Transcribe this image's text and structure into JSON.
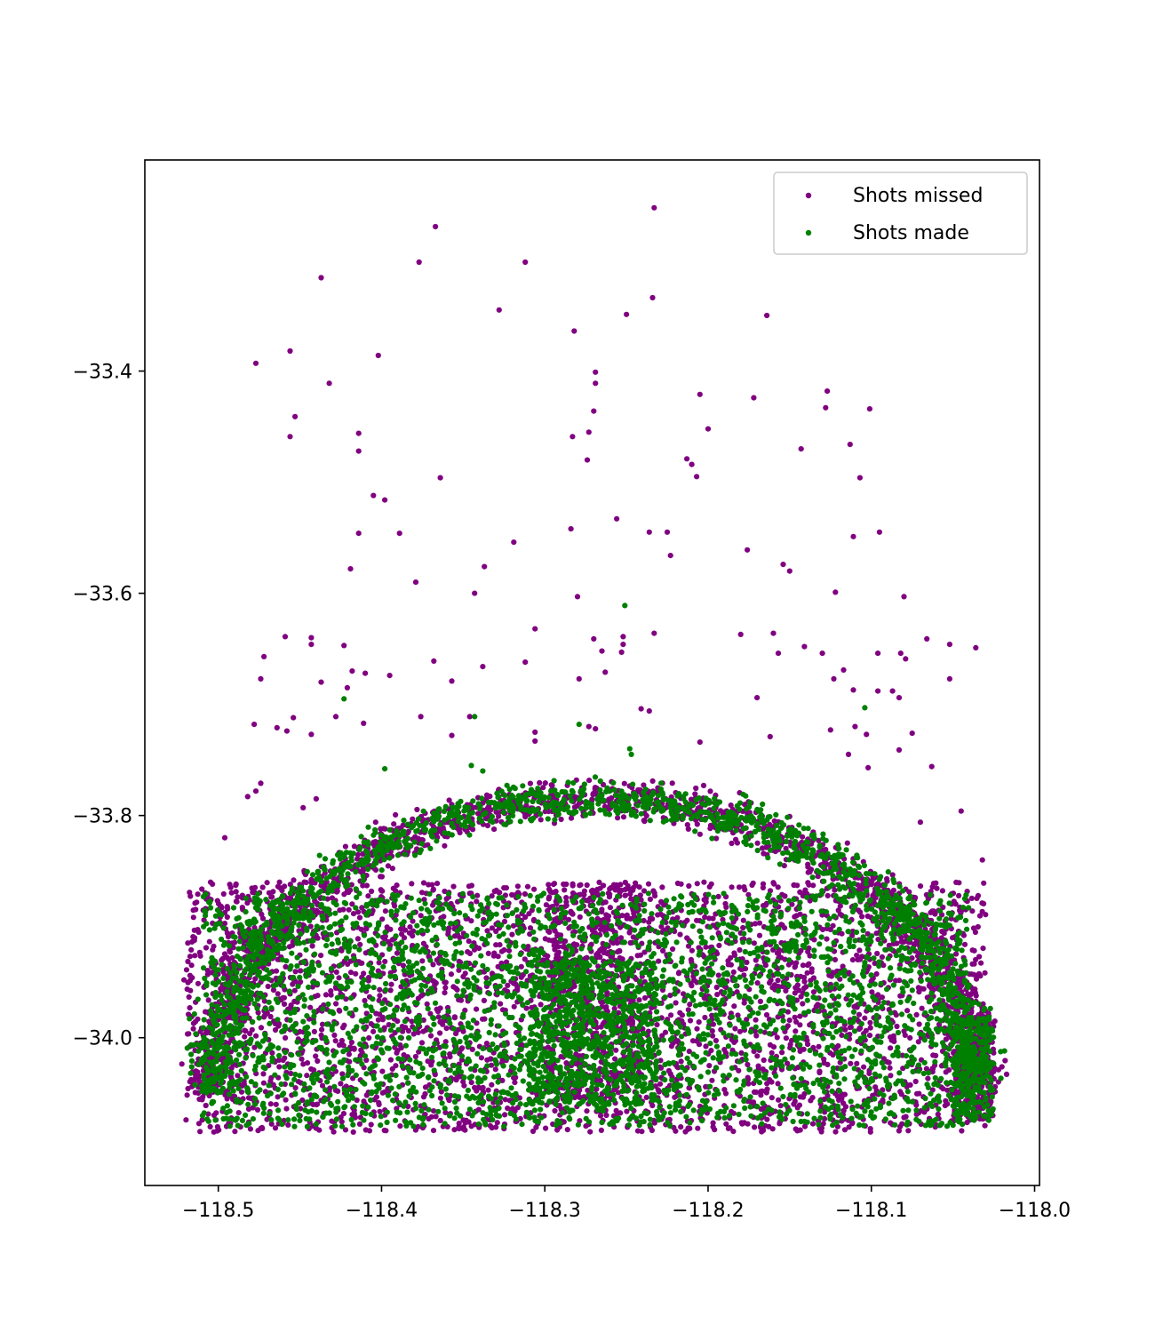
{
  "chart_data": {
    "type": "scatter",
    "title": "",
    "xlabel": "",
    "ylabel": "",
    "xlim": [
      -118.545,
      -117.997
    ],
    "ylim": [
      -34.133,
      -33.21
    ],
    "x_ticks": [
      -118.5,
      -118.4,
      -118.3,
      -118.2,
      -118.1,
      -118.0
    ],
    "x_tick_labels": [
      "−118.5",
      "−118.4",
      "−118.3",
      "−118.2",
      "−118.1",
      "−118.0"
    ],
    "y_ticks": [
      -33.4,
      -33.6,
      -33.8,
      -34.0
    ],
    "y_tick_labels": [
      "−33.4",
      "−33.6",
      "−33.8",
      "−34.0"
    ],
    "grid": false,
    "legend_position": "top-right",
    "series": [
      {
        "name": "Shots missed",
        "color": "#800080",
        "outliers": [
          [
            -118.233,
            -33.253
          ],
          [
            -118.367,
            -33.27
          ],
          [
            -118.377,
            -33.302
          ],
          [
            -118.312,
            -33.302
          ],
          [
            -118.437,
            -33.316
          ],
          [
            -118.234,
            -33.334
          ],
          [
            -118.328,
            -33.345
          ],
          [
            -118.25,
            -33.349
          ],
          [
            -118.164,
            -33.35
          ],
          [
            -118.282,
            -33.364
          ],
          [
            -118.456,
            -33.382
          ],
          [
            -118.477,
            -33.393
          ],
          [
            -118.402,
            -33.386
          ],
          [
            -118.269,
            -33.401
          ],
          [
            -118.269,
            -33.411
          ],
          [
            -118.432,
            -33.411
          ],
          [
            -118.127,
            -33.418
          ],
          [
            -118.205,
            -33.421
          ],
          [
            -118.172,
            -33.424
          ],
          [
            -118.128,
            -33.433
          ],
          [
            -118.101,
            -33.434
          ],
          [
            -118.27,
            -33.436
          ],
          [
            -118.453,
            -33.441
          ],
          [
            -118.2,
            -33.452
          ],
          [
            -118.414,
            -33.456
          ],
          [
            -118.273,
            -33.455
          ],
          [
            -118.283,
            -33.459
          ],
          [
            -118.456,
            -33.459
          ],
          [
            -118.113,
            -33.466
          ],
          [
            -118.143,
            -33.47
          ],
          [
            -118.414,
            -33.472
          ],
          [
            -118.274,
            -33.48
          ],
          [
            -118.213,
            -33.479
          ],
          [
            -118.21,
            -33.484
          ],
          [
            -118.364,
            -33.496
          ],
          [
            -118.207,
            -33.495
          ],
          [
            -118.107,
            -33.496
          ],
          [
            -118.405,
            -33.512
          ],
          [
            -118.398,
            -33.516
          ],
          [
            -118.256,
            -33.533
          ],
          [
            -118.284,
            -33.542
          ],
          [
            -118.414,
            -33.546
          ],
          [
            -118.389,
            -33.546
          ],
          [
            -118.236,
            -33.545
          ],
          [
            -118.225,
            -33.545
          ],
          [
            -118.095,
            -33.545
          ],
          [
            -118.111,
            -33.549
          ],
          [
            -118.319,
            -33.554
          ],
          [
            -118.176,
            -33.561
          ],
          [
            -118.223,
            -33.566
          ],
          [
            -118.154,
            -33.574
          ],
          [
            -118.15,
            -33.58
          ],
          [
            -118.419,
            -33.578
          ],
          [
            -118.337,
            -33.576
          ],
          [
            -118.379,
            -33.59
          ],
          [
            -118.343,
            -33.6
          ],
          [
            -118.122,
            -33.599
          ],
          [
            -118.28,
            -33.603
          ],
          [
            -118.08,
            -33.603
          ],
          [
            -118.306,
            -33.632
          ],
          [
            -118.459,
            -33.639
          ],
          [
            -118.233,
            -33.636
          ],
          [
            -118.27,
            -33.641
          ],
          [
            -118.252,
            -33.639
          ],
          [
            -118.18,
            -33.637
          ],
          [
            -118.16,
            -33.636
          ],
          [
            -118.443,
            -33.64
          ],
          [
            -118.066,
            -33.641
          ],
          [
            -118.052,
            -33.646
          ],
          [
            -118.036,
            -33.649
          ],
          [
            -118.252,
            -33.646
          ],
          [
            -118.443,
            -33.646
          ],
          [
            -118.423,
            -33.647
          ],
          [
            -118.141,
            -33.648
          ],
          [
            -118.265,
            -33.652
          ],
          [
            -118.253,
            -33.653
          ],
          [
            -118.157,
            -33.654
          ],
          [
            -118.13,
            -33.654
          ],
          [
            -118.096,
            -33.654
          ],
          [
            -118.082,
            -33.654
          ],
          [
            -118.079,
            -33.659
          ],
          [
            -118.472,
            -33.657
          ],
          [
            -118.368,
            -33.661
          ],
          [
            -118.312,
            -33.662
          ],
          [
            -118.338,
            -33.666
          ],
          [
            -118.117,
            -33.669
          ],
          [
            -118.418,
            -33.67
          ],
          [
            -118.263,
            -33.671
          ],
          [
            -118.41,
            -33.672
          ],
          [
            -118.395,
            -33.674
          ],
          [
            -118.474,
            -33.677
          ],
          [
            -118.052,
            -33.677
          ],
          [
            -118.279,
            -33.677
          ],
          [
            -118.437,
            -33.68
          ],
          [
            -118.357,
            -33.679
          ],
          [
            -118.123,
            -33.677
          ],
          [
            -118.421,
            -33.685
          ],
          [
            -118.111,
            -33.687
          ],
          [
            -118.096,
            -33.688
          ],
          [
            -118.087,
            -33.688
          ],
          [
            -118.17,
            -33.694
          ],
          [
            -118.083,
            -33.694
          ],
          [
            -118.241,
            -33.704
          ],
          [
            -118.236,
            -33.706
          ],
          [
            -118.428,
            -33.711
          ],
          [
            -118.454,
            -33.712
          ],
          [
            -118.376,
            -33.711
          ],
          [
            -118.346,
            -33.711
          ],
          [
            -118.411,
            -33.717
          ],
          [
            -118.478,
            -33.718
          ],
          [
            -118.273,
            -33.72
          ],
          [
            -118.11,
            -33.72
          ],
          [
            -118.306,
            -33.725
          ],
          [
            -118.464,
            -33.721
          ],
          [
            -118.458,
            -33.724
          ],
          [
            -118.443,
            -33.727
          ],
          [
            -118.357,
            -33.728
          ],
          [
            -118.269,
            -33.722
          ],
          [
            -118.125,
            -33.723
          ],
          [
            -118.075,
            -33.726
          ],
          [
            -118.103,
            -33.727
          ],
          [
            -118.162,
            -33.729
          ],
          [
            -118.205,
            -33.734
          ],
          [
            -118.306,
            -33.733
          ],
          [
            -118.083,
            -33.741
          ],
          [
            -118.114,
            -33.745
          ],
          [
            -118.102,
            -33.757
          ],
          [
            -118.063,
            -33.756
          ],
          [
            -118.045,
            -33.796
          ],
          [
            -118.07,
            -33.806
          ],
          [
            -118.44,
            -33.785
          ],
          [
            -118.448,
            -33.793
          ],
          [
            -118.496,
            -33.82
          ],
          [
            -118.032,
            -33.84
          ],
          [
            -118.493,
            -33.862
          ],
          [
            -118.499,
            -33.896
          ],
          [
            -118.512,
            -33.905
          ],
          [
            -118.521,
            -33.948
          ],
          [
            -118.516,
            -33.946
          ],
          [
            -118.474,
            -33.771
          ],
          [
            -118.477,
            -33.778
          ],
          [
            -118.482,
            -33.783
          ]
        ],
        "clusters": [
          {
            "shape": "arc",
            "cx": -118.27,
            "cy": -34.05,
            "rx": 0.235,
            "ry": 0.265,
            "count": 1700,
            "spread": 0.03
          },
          {
            "shape": "box",
            "x": [
              -118.52,
              -118.03
            ],
            "y": [
              -34.085,
              -33.86
            ],
            "count": 3300
          },
          {
            "shape": "box",
            "x": [
              -118.3,
              -118.24
            ],
            "y": [
              -34.06,
              -33.86
            ],
            "count": 450
          },
          {
            "shape": "box",
            "x": [
              -118.05,
              -118.025
            ],
            "y": [
              -34.075,
              -33.98
            ],
            "count": 220
          }
        ]
      },
      {
        "name": "Shots made",
        "color": "#008000",
        "outliers": [
          [
            -118.251,
            -33.611
          ],
          [
            -118.279,
            -33.718
          ],
          [
            -118.343,
            -33.711
          ],
          [
            -118.398,
            -33.758
          ],
          [
            -118.104,
            -33.703
          ],
          [
            -118.423,
            -33.695
          ],
          [
            -118.248,
            -33.74
          ],
          [
            -118.247,
            -33.745
          ],
          [
            -118.345,
            -33.755
          ],
          [
            -118.338,
            -33.76
          ]
        ],
        "clusters": [
          {
            "shape": "arc",
            "cx": -118.27,
            "cy": -34.05,
            "rx": 0.235,
            "ry": 0.265,
            "count": 1500,
            "spread": 0.03
          },
          {
            "shape": "box",
            "x": [
              -118.51,
              -118.04
            ],
            "y": [
              -34.08,
              -33.87
            ],
            "count": 2900
          },
          {
            "shape": "box",
            "x": [
              -118.31,
              -118.23
            ],
            "y": [
              -34.06,
              -33.93
            ],
            "count": 650
          },
          {
            "shape": "box",
            "x": [
              -118.05,
              -118.025
            ],
            "y": [
              -34.075,
              -33.98
            ],
            "count": 220
          }
        ]
      }
    ]
  }
}
